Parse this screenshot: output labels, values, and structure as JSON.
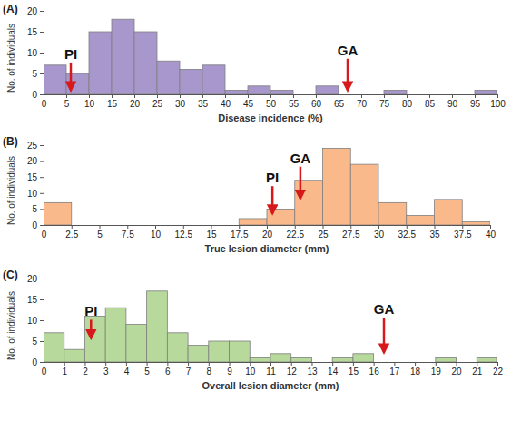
{
  "chart_data": [
    {
      "type": "histogram",
      "title": "(A)",
      "xlabel": "Disease incidence (%)",
      "ylabel": "No. of individuals",
      "color": "#a797cc",
      "bins": [
        0,
        5,
        10,
        15,
        20,
        25,
        30,
        35,
        40,
        45,
        50,
        55,
        60,
        65,
        70,
        75,
        80,
        85,
        90,
        95,
        100
      ],
      "values": [
        7,
        5,
        15,
        18,
        15,
        8,
        6,
        7,
        1,
        2,
        1,
        0,
        2,
        0,
        0,
        1,
        0,
        0,
        0,
        1
      ],
      "xlim": [
        0,
        100
      ],
      "ylim": [
        0,
        20
      ],
      "xticks": [
        0,
        5,
        10,
        15,
        20,
        25,
        30,
        35,
        40,
        45,
        50,
        55,
        60,
        65,
        70,
        75,
        80,
        85,
        90,
        95,
        100
      ],
      "yticks": [
        0,
        5,
        10,
        15,
        20
      ],
      "annotations": [
        {
          "text": "PI",
          "x": 6,
          "y": 1,
          "label_y": 8.5
        },
        {
          "text": "GA",
          "x": 67,
          "y": 1,
          "label_y": 9.4
        }
      ]
    },
    {
      "type": "histogram",
      "title": "(B)",
      "xlabel": "True lesion diameter (mm)",
      "ylabel": "No. of individuals",
      "color": "#f9b98a",
      "bins": [
        0,
        2.5,
        5,
        7.5,
        10,
        12.5,
        15,
        17.5,
        20,
        22.5,
        25,
        27.5,
        30,
        32.5,
        35,
        37.5,
        40
      ],
      "values": [
        7,
        0,
        0,
        0,
        0,
        0,
        0,
        2,
        5,
        14,
        24,
        19,
        7,
        3,
        8,
        1
      ],
      "xlim": [
        0,
        40
      ],
      "ylim": [
        0,
        25
      ],
      "xticks": [
        0,
        2.5,
        5,
        7.5,
        10,
        12.5,
        15,
        17.5,
        20,
        22.5,
        25,
        27.5,
        30,
        32.5,
        35,
        37.5,
        40
      ],
      "yticks": [
        0,
        5,
        10,
        15,
        20,
        25
      ],
      "annotations": [
        {
          "text": "PI",
          "x": 20.5,
          "y": 3.6,
          "label_y": 13.3
        },
        {
          "text": "GA",
          "x": 23,
          "y": 8.3,
          "label_y": 19.4
        }
      ]
    },
    {
      "type": "histogram",
      "title": "(C)",
      "xlabel": "Overall lesion diameter (mm)",
      "ylabel": "No. of individuals",
      "color": "#b7d99c",
      "bins": [
        0,
        1,
        2,
        3,
        4,
        5,
        6,
        7,
        8,
        9,
        10,
        11,
        12,
        13,
        14,
        15,
        16,
        17,
        18,
        19,
        20,
        21,
        22
      ],
      "values": [
        7,
        3,
        11,
        13,
        9,
        17,
        7,
        4,
        5,
        5,
        1,
        2,
        1,
        0,
        1,
        2,
        0,
        0,
        0,
        1,
        0,
        1
      ],
      "xlim": [
        0,
        22
      ],
      "ylim": [
        0,
        20
      ],
      "xticks": [
        0,
        1,
        2,
        3,
        4,
        5,
        6,
        7,
        8,
        9,
        10,
        11,
        12,
        13,
        14,
        15,
        16,
        17,
        18,
        19,
        20,
        21,
        22
      ],
      "yticks": [
        0,
        5,
        10,
        15,
        20
      ],
      "annotations": [
        {
          "text": "PI",
          "x": 2.3,
          "y": 5.7,
          "label_y": 11
        },
        {
          "text": "GA",
          "x": 16.5,
          "y": 2.3,
          "label_y": 11.5
        }
      ]
    }
  ]
}
